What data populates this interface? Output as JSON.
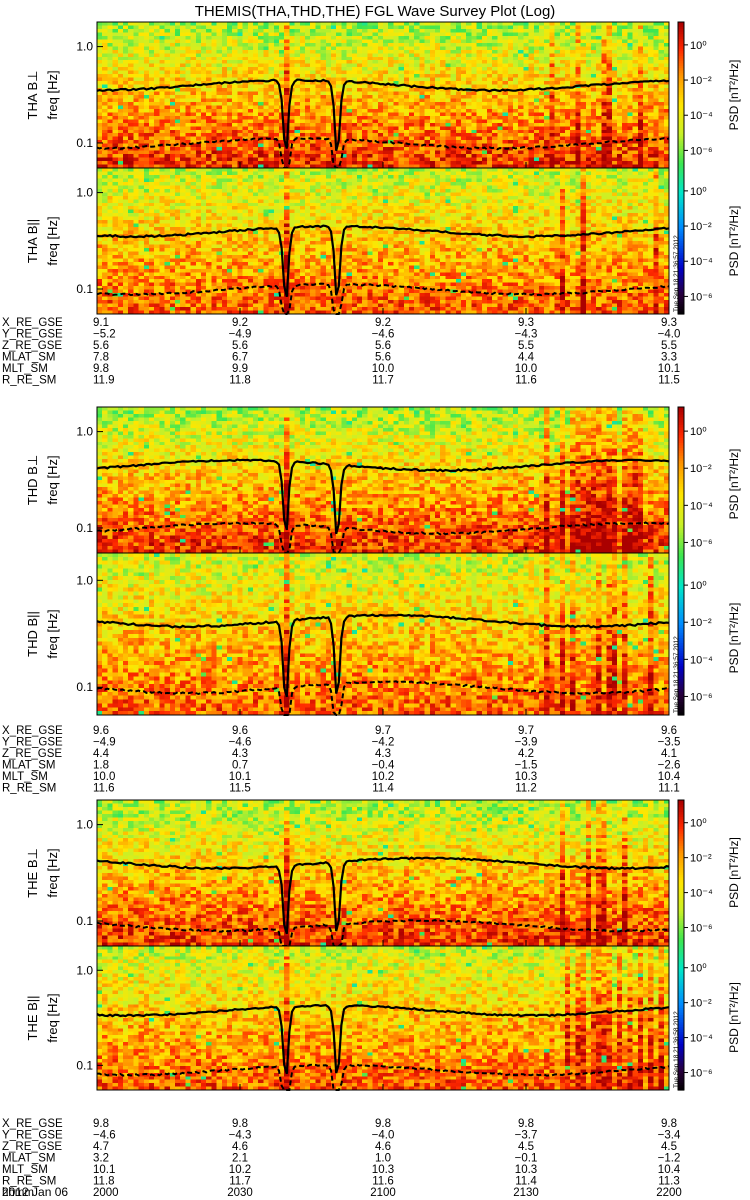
{
  "title": "THEMIS(THA,THD,THE) FGL Wave Survey Plot (Log)",
  "date_label": "2012 Jan 06",
  "colorbar": {
    "ticks": [
      "10⁰",
      "10⁻²",
      "10⁻⁴",
      "10⁻⁶"
    ],
    "label": "PSD [nT²/Hz]",
    "log_min": -7,
    "log_max": 1.3
  },
  "freq_ticks": [
    "1.0",
    "0.1"
  ],
  "time_ticks": [
    "2000",
    "2030",
    "2100",
    "2130",
    "2200"
  ],
  "eph_time_label": "hhmm",
  "stamps": [
    "Tue Sep 18 21:36:57 2012",
    "Tue Sep 18 21:36:57 2012",
    "Tue Sep 18 21:36:58 2012"
  ],
  "chart_data": [
    {
      "type": "heatmap",
      "ylabel": "THA B⊥",
      "yunit": "freq [Hz]",
      "ylim": [
        0.055,
        1.8
      ],
      "yscale": "log",
      "seed": 11,
      "low": 0.1,
      "high": 0.4,
      "bias": 1.0
    },
    {
      "type": "heatmap",
      "ylabel": "THA B||",
      "yunit": "freq [Hz]",
      "ylim": [
        0.055,
        1.8
      ],
      "yscale": "log",
      "seed": 23,
      "low": 0.1,
      "high": 0.4,
      "bias": 0.75
    },
    {
      "type": "heatmap",
      "ylabel": "THD B⊥",
      "yunit": "freq [Hz]",
      "ylim": [
        0.055,
        1.8
      ],
      "yscale": "log",
      "seed": 37,
      "low": 0.1,
      "high": 0.45,
      "bias": 1.0
    },
    {
      "type": "heatmap",
      "ylabel": "THD B||",
      "yunit": "freq [Hz]",
      "ylim": [
        0.055,
        1.8
      ],
      "yscale": "log",
      "seed": 41,
      "low": 0.1,
      "high": 0.42,
      "bias": 0.7
    },
    {
      "type": "heatmap",
      "ylabel": "THE B⊥",
      "yunit": "freq [Hz]",
      "ylim": [
        0.055,
        1.8
      ],
      "yscale": "log",
      "seed": 53,
      "low": 0.09,
      "high": 0.4,
      "bias": 1.0
    },
    {
      "type": "heatmap",
      "ylabel": "THE B||",
      "yunit": "freq [Hz]",
      "ylim": [
        0.055,
        1.8
      ],
      "yscale": "log",
      "seed": 67,
      "low": 0.09,
      "high": 0.38,
      "bias": 0.75
    }
  ],
  "ephemeris": [
    {
      "rows": [
        {
          "label": "X_RE_GSE",
          "values": [
            "9.1",
            "9.2",
            "9.2",
            "9.3",
            "9.3"
          ]
        },
        {
          "label": "Y_RE_GSE",
          "values": [
            "−5.2",
            "−4.9",
            "−4.6",
            "−4.3",
            "−4.0"
          ]
        },
        {
          "label": "Z_RE_GSE",
          "values": [
            "5.6",
            "5.6",
            "5.6",
            "5.5",
            "5.5"
          ]
        },
        {
          "label": "MLAT_SM",
          "values": [
            "7.8",
            "6.7",
            "5.6",
            "4.4",
            "3.3"
          ]
        },
        {
          "label": "MLT_SM",
          "values": [
            "9.8",
            "9.9",
            "10.0",
            "10.0",
            "10.1"
          ]
        },
        {
          "label": "R_RE_SM",
          "values": [
            "11.9",
            "11.8",
            "11.7",
            "11.6",
            "11.5"
          ]
        }
      ]
    },
    {
      "rows": [
        {
          "label": "X_RE_GSE",
          "values": [
            "9.6",
            "9.6",
            "9.7",
            "9.7",
            "9.6"
          ]
        },
        {
          "label": "Y_RE_GSE",
          "values": [
            "−4.9",
            "−4.6",
            "−4.2",
            "−3.9",
            "−3.5"
          ]
        },
        {
          "label": "Z_RE_GSE",
          "values": [
            "4.4",
            "4.3",
            "4.3",
            "4.2",
            "4.1"
          ]
        },
        {
          "label": "MLAT_SM",
          "values": [
            "1.8",
            "0.7",
            "−0.4",
            "−1.5",
            "−2.6"
          ]
        },
        {
          "label": "MLT_SM",
          "values": [
            "10.0",
            "10.1",
            "10.2",
            "10.3",
            "10.4"
          ]
        },
        {
          "label": "R_RE_SM",
          "values": [
            "11.6",
            "11.5",
            "11.4",
            "11.2",
            "11.1"
          ]
        }
      ]
    },
    {
      "rows": [
        {
          "label": "X_RE_GSE",
          "values": [
            "9.8",
            "9.8",
            "9.8",
            "9.8",
            "9.8"
          ]
        },
        {
          "label": "Y_RE_GSE",
          "values": [
            "−4.6",
            "−4.3",
            "−4.0",
            "−3.7",
            "−3.4"
          ]
        },
        {
          "label": "Z_RE_GSE",
          "values": [
            "4.7",
            "4.6",
            "4.6",
            "4.5",
            "4.5"
          ]
        },
        {
          "label": "MLAT_SM",
          "values": [
            "3.2",
            "2.1",
            "1.0",
            "−0.1",
            "−1.2"
          ]
        },
        {
          "label": "MLT_SM",
          "values": [
            "10.1",
            "10.2",
            "10.3",
            "10.3",
            "10.4"
          ]
        },
        {
          "label": "R_RE_SM",
          "values": [
            "11.8",
            "11.7",
            "11.6",
            "11.4",
            "11.3"
          ]
        }
      ]
    }
  ]
}
